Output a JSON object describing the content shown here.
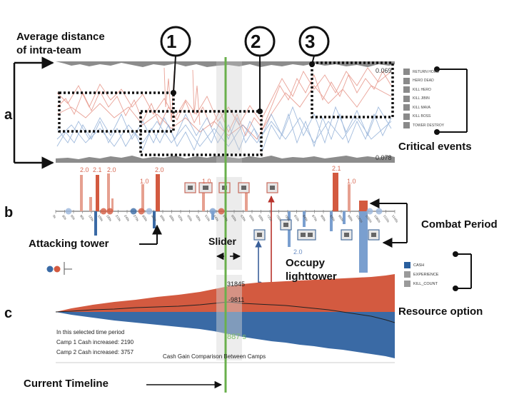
{
  "panel_labels": {
    "a": "a",
    "b": "b",
    "c": "c"
  },
  "annotations": {
    "avg_distance_line1": "Average distance",
    "avg_distance_line2": "of intra-team",
    "critical_events": "Critical events",
    "combat_period": "Combat Period",
    "attacking_tower": "Attacking tower",
    "slider": "Slider",
    "occupy_line1": "Occupy",
    "occupy_line2": "lighttower",
    "resource_option": "Resource option",
    "current_timeline": "Current Timeline"
  },
  "callouts": [
    "1",
    "2",
    "3"
  ],
  "panel_a": {
    "top_value": "0.069",
    "bottom_value": "0.078"
  },
  "critical_events": [
    "RETURN HOME",
    "HERO DEAD",
    "KILL HERO",
    "KILL JIBIN",
    "KILL MAVA",
    "KILL BOSS",
    "TOWER DESTROY"
  ],
  "panel_b": {
    "top_numbers": [
      {
        "label": "2.0",
        "color": "#d86a55"
      },
      {
        "label": "2.1",
        "color": "#d86a55"
      },
      {
        "label": "2.0",
        "color": "#d86a55"
      },
      {
        "label": "1.0",
        "color": "#d86a55"
      },
      {
        "label": "2.0",
        "color": "#d86a55"
      },
      {
        "label": "1.0",
        "color": "#d86a55"
      },
      {
        "label": "2.1",
        "color": "#d86a55"
      },
      {
        "label": "1.0",
        "color": "#d86a55"
      }
    ],
    "bottom_number": "2.0",
    "time_ticks": [
      "0s",
      "30s",
      "60s",
      "90s",
      "120s",
      "150s",
      "180s",
      "210s",
      "240s",
      "270s",
      "300s",
      "330s",
      "360s",
      "390s",
      "420s",
      "450s",
      "480s",
      "510s",
      "540s",
      "570s",
      "600s",
      "630s",
      "660s",
      "690s",
      "720s",
      "750s",
      "780s",
      "810s",
      "840s",
      "870s",
      "900s",
      "930s",
      "960s",
      "990s",
      "1020s",
      "1050s",
      "1080s",
      "1110s",
      "1140s"
    ]
  },
  "resource_options": [
    {
      "label": "CASH",
      "color": "#2a5f9e"
    },
    {
      "label": "EXPERIENCE",
      "color": "#9a9a9a"
    },
    {
      "label": "KILL_COUNT",
      "color": "#9a9a9a"
    }
  ],
  "panel_c": {
    "peak_value": "31845",
    "diff_value": "-9811",
    "time_label": "887 s",
    "summary_line1": "In this selected time period",
    "summary_line2": "Camp 1 Cash increased: 2190",
    "summary_line3": "Camp 2 Cash increased: 3757",
    "chart_title": "Cash Gain Comparison Between Camps"
  },
  "colors": {
    "camp1": "#d35a40",
    "camp2": "#3a6aa5",
    "timeline": "#6ab04c",
    "slider_band": "#c8c8c8"
  }
}
